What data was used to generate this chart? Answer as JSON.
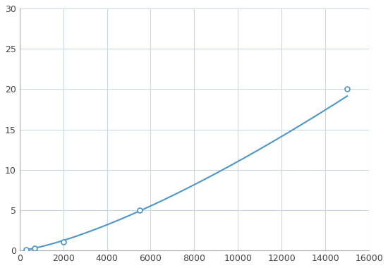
{
  "x_points": [
    300,
    700,
    2000,
    5500,
    15000
  ],
  "y_points": [
    0.1,
    0.3,
    1.1,
    5.0,
    20.0
  ],
  "line_color": "#4e96c8",
  "marker_color": "#4e96c8",
  "marker_size": 5,
  "line_width": 1.5,
  "xlim": [
    0,
    16000
  ],
  "ylim": [
    0,
    30
  ],
  "xticks": [
    0,
    2000,
    4000,
    6000,
    8000,
    10000,
    12000,
    14000,
    16000
  ],
  "yticks": [
    0,
    5,
    10,
    15,
    20,
    25,
    30
  ],
  "grid_color": "#c8d8e8",
  "bg_color": "#ffffff",
  "fig_bg_color": "#ffffff",
  "figsize": [
    5.5,
    3.8
  ],
  "dpi": 100
}
